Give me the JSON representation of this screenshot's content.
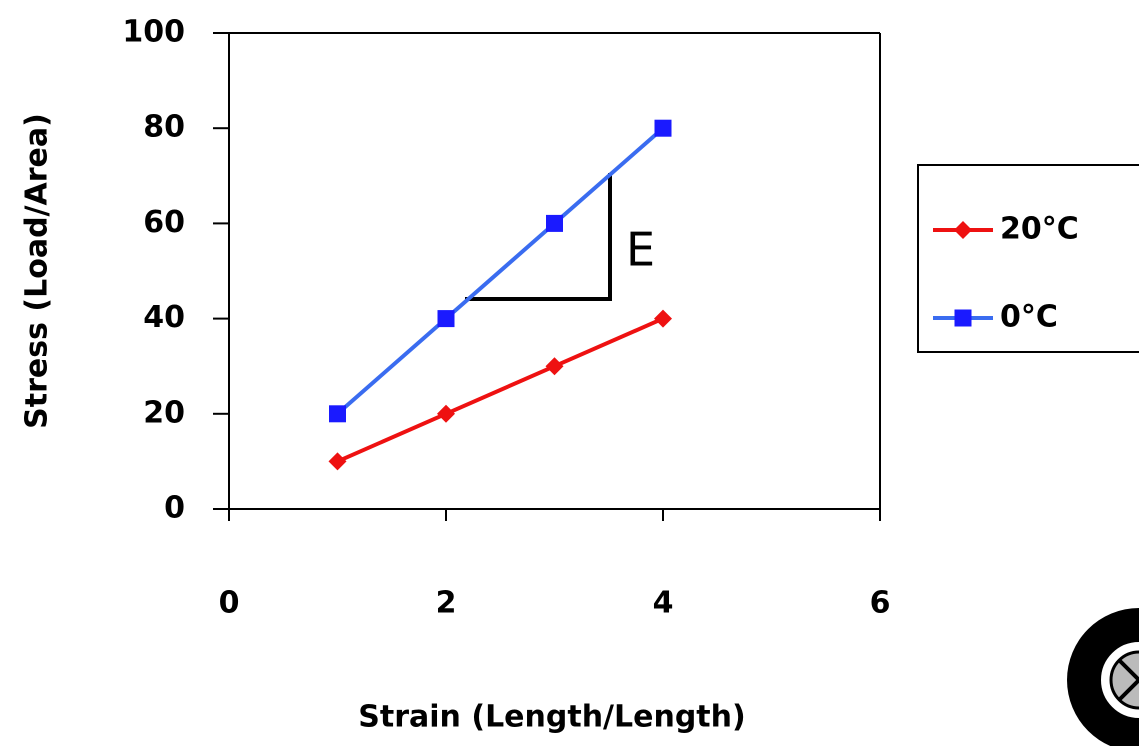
{
  "chart_data": {
    "type": "line",
    "x_label": "Strain (Length/Length)",
    "y_label": "Stress (Load/Area)",
    "x": [
      1,
      2,
      3,
      4
    ],
    "series": [
      {
        "name": "20°C",
        "color": "#ee1111",
        "marker": "diamond",
        "values": [
          10,
          20,
          30,
          40
        ]
      },
      {
        "name": "0°C",
        "color": "#3a6cf0",
        "marker": "square",
        "values": [
          20,
          40,
          60,
          80
        ]
      }
    ],
    "xlim": [
      0,
      6
    ],
    "xticks": [
      0,
      2,
      4,
      6
    ],
    "ylim": [
      0,
      100
    ],
    "yticks": [
      0,
      20,
      40,
      60,
      80,
      100
    ],
    "annotation": "E",
    "legend": "right"
  }
}
